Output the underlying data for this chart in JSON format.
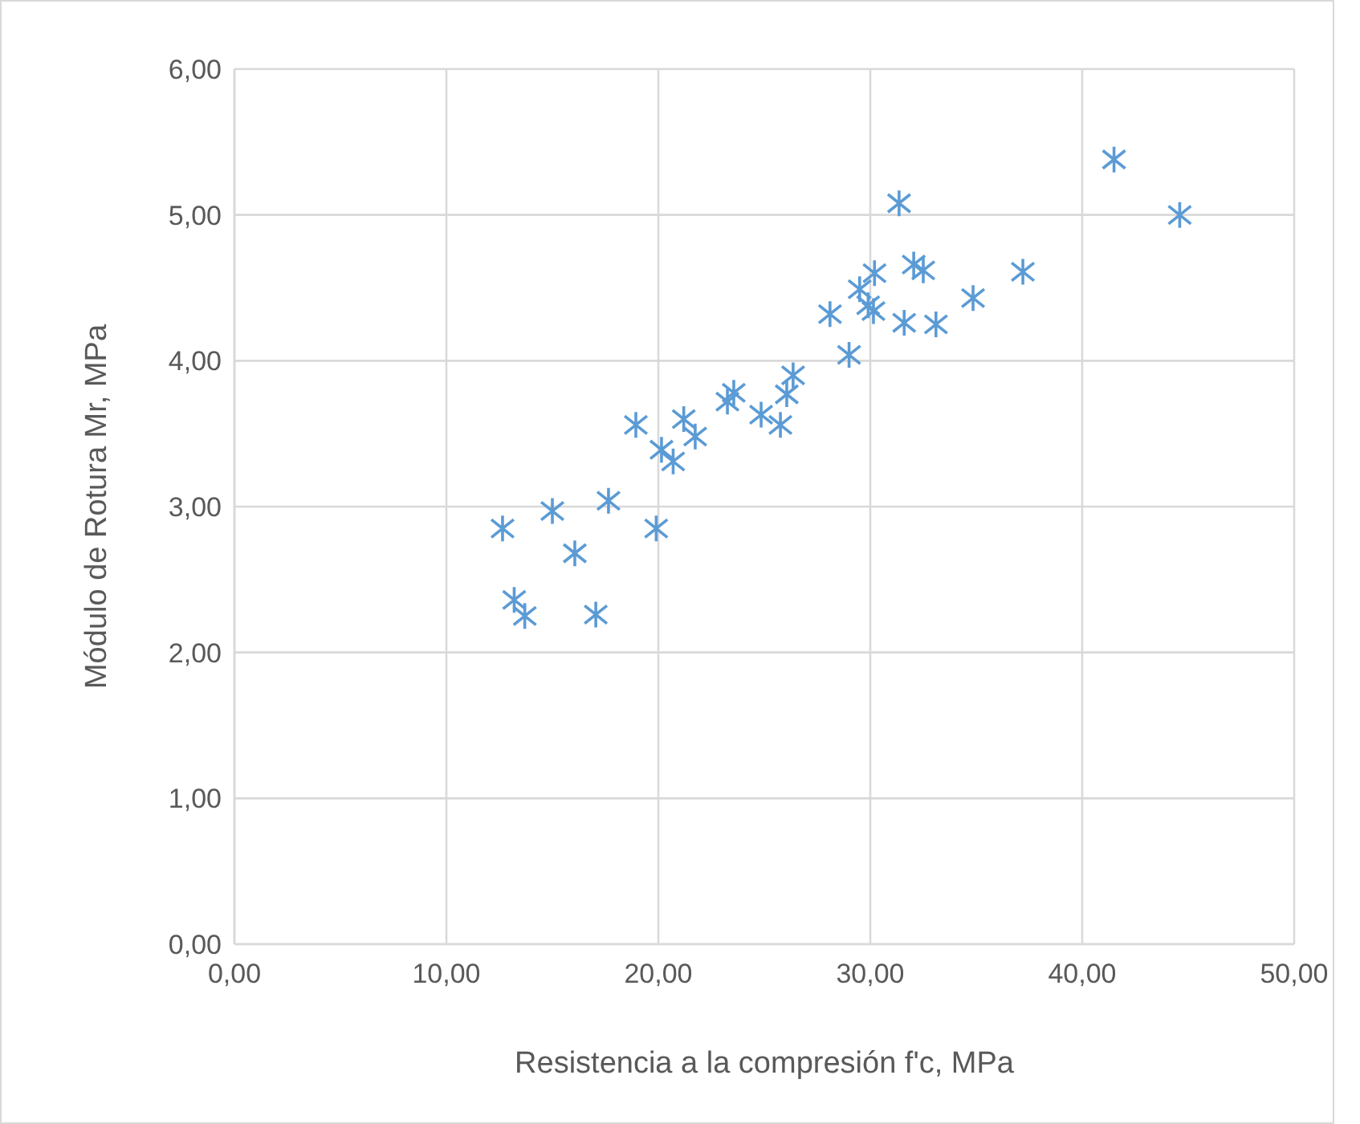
{
  "chart_data": {
    "type": "scatter",
    "xlabel": "Resistencia a la compresión f'c, MPa",
    "ylabel": "Módulo de Rotura Mr, MPa",
    "x": [
      12.65,
      13.2,
      13.7,
      15.0,
      16.06,
      17.05,
      17.65,
      18.94,
      19.9,
      20.15,
      20.7,
      21.2,
      21.74,
      23.26,
      23.56,
      24.85,
      25.76,
      26.06,
      26.36,
      28.1,
      29.0,
      29.5,
      29.9,
      30.15,
      30.2,
      31.36,
      31.6,
      32.05,
      32.5,
      33.1,
      34.85,
      37.2,
      41.5,
      44.6
    ],
    "series": [
      {
        "color": "#5b9bd5",
        "values": [
          2.85,
          2.36,
          2.25,
          2.97,
          2.68,
          2.26,
          3.04,
          3.56,
          2.85,
          3.39,
          3.31,
          3.6,
          3.48,
          3.72,
          3.78,
          3.63,
          3.56,
          3.77,
          3.9,
          4.32,
          4.04,
          4.49,
          4.38,
          4.34,
          4.6,
          5.08,
          4.26,
          4.66,
          4.62,
          4.25,
          4.43,
          4.61,
          5.38,
          5.0
        ]
      }
    ],
    "xlim": [
      0,
      50
    ],
    "ylim": [
      0,
      6
    ],
    "xticks": [
      {
        "value": 0,
        "label": "0,00"
      },
      {
        "value": 10,
        "label": "10,00"
      },
      {
        "value": 20,
        "label": "20,00"
      },
      {
        "value": 30,
        "label": "30,00"
      },
      {
        "value": 40,
        "label": "40,00"
      },
      {
        "value": 50,
        "label": "50,00"
      }
    ],
    "yticks": [
      {
        "value": 0,
        "label": "0,00"
      },
      {
        "value": 1,
        "label": "1,00"
      },
      {
        "value": 2,
        "label": "2,00"
      },
      {
        "value": 3,
        "label": "3,00"
      },
      {
        "value": 4,
        "label": "4,00"
      },
      {
        "value": 5,
        "label": "5,00"
      },
      {
        "value": 6,
        "label": "6,00"
      }
    ],
    "grid": true,
    "marker": "cross"
  }
}
